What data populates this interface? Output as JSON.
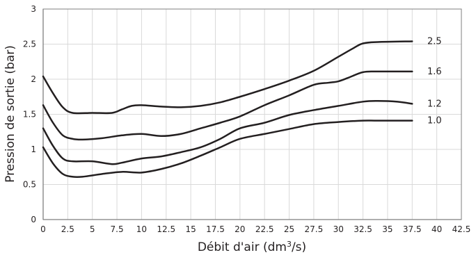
{
  "chart_data": {
    "type": "line",
    "xlabel": "Débit d'air (dm",
    "xlabel_sup": "3",
    "xlabel_tail": "/s)",
    "ylabel": "Pression de sortie (bar)",
    "xlim": [
      0,
      42.5
    ],
    "ylim": [
      0,
      3
    ],
    "x_ticks": [
      "0",
      "2.5",
      "5",
      "7.5",
      "10",
      "12.5",
      "15",
      "17.5",
      "20",
      "22.5",
      "25",
      "27.5",
      "30",
      "32.5",
      "35",
      "37.5",
      "40",
      "42.5"
    ],
    "y_ticks": [
      "0",
      "0.5",
      "1",
      "1.5",
      "2",
      "2.5",
      "3"
    ],
    "grid": true,
    "series": [
      {
        "name": "2.5",
        "points": [
          [
            0,
            2.04
          ],
          [
            1,
            1.8
          ],
          [
            2,
            1.6
          ],
          [
            3,
            1.52
          ],
          [
            5,
            1.52
          ],
          [
            7,
            1.52
          ],
          [
            8,
            1.57
          ],
          [
            9,
            1.62
          ],
          [
            10,
            1.63
          ],
          [
            12,
            1.61
          ],
          [
            14,
            1.6
          ],
          [
            16,
            1.62
          ],
          [
            18,
            1.67
          ],
          [
            20,
            1.75
          ],
          [
            22.5,
            1.86
          ],
          [
            25,
            1.98
          ],
          [
            27.5,
            2.12
          ],
          [
            30,
            2.32
          ],
          [
            31.5,
            2.44
          ],
          [
            32.5,
            2.51
          ],
          [
            34,
            2.53
          ],
          [
            37.5,
            2.54
          ]
        ]
      },
      {
        "name": "1.6",
        "points": [
          [
            0,
            1.63
          ],
          [
            1,
            1.38
          ],
          [
            2,
            1.2
          ],
          [
            3,
            1.15
          ],
          [
            4,
            1.14
          ],
          [
            6,
            1.16
          ],
          [
            8,
            1.2
          ],
          [
            10,
            1.22
          ],
          [
            12,
            1.19
          ],
          [
            14,
            1.22
          ],
          [
            16,
            1.3
          ],
          [
            18,
            1.38
          ],
          [
            20,
            1.47
          ],
          [
            22.5,
            1.63
          ],
          [
            25,
            1.77
          ],
          [
            27.5,
            1.92
          ],
          [
            29,
            1.95
          ],
          [
            30,
            1.97
          ],
          [
            31,
            2.02
          ],
          [
            32.5,
            2.1
          ],
          [
            34,
            2.11
          ],
          [
            37.5,
            2.11
          ]
        ]
      },
      {
        "name": "1.2",
        "points": [
          [
            0,
            1.3
          ],
          [
            1,
            1.05
          ],
          [
            2,
            0.87
          ],
          [
            3,
            0.83
          ],
          [
            5,
            0.83
          ],
          [
            7,
            0.79
          ],
          [
            8,
            0.81
          ],
          [
            10,
            0.87
          ],
          [
            12,
            0.9
          ],
          [
            14,
            0.96
          ],
          [
            16,
            1.03
          ],
          [
            18,
            1.15
          ],
          [
            20,
            1.3
          ],
          [
            22.5,
            1.38
          ],
          [
            25,
            1.49
          ],
          [
            27.5,
            1.56
          ],
          [
            30,
            1.62
          ],
          [
            32.5,
            1.68
          ],
          [
            34,
            1.69
          ],
          [
            36,
            1.68
          ],
          [
            37.5,
            1.65
          ]
        ]
      },
      {
        "name": "1.0",
        "points": [
          [
            0,
            1.03
          ],
          [
            1,
            0.8
          ],
          [
            2,
            0.65
          ],
          [
            3,
            0.61
          ],
          [
            4,
            0.61
          ],
          [
            6,
            0.65
          ],
          [
            8,
            0.68
          ],
          [
            10,
            0.67
          ],
          [
            12,
            0.72
          ],
          [
            14,
            0.8
          ],
          [
            16,
            0.91
          ],
          [
            18,
            1.03
          ],
          [
            20,
            1.15
          ],
          [
            22.5,
            1.22
          ],
          [
            25,
            1.29
          ],
          [
            27.5,
            1.36
          ],
          [
            30,
            1.39
          ],
          [
            32.5,
            1.41
          ],
          [
            34,
            1.41
          ],
          [
            37.5,
            1.41
          ]
        ]
      }
    ],
    "colors": {
      "line": "#231f20",
      "grid": "#d9d9d9",
      "axis": "#7f7f7f",
      "text": "#231f20"
    }
  }
}
